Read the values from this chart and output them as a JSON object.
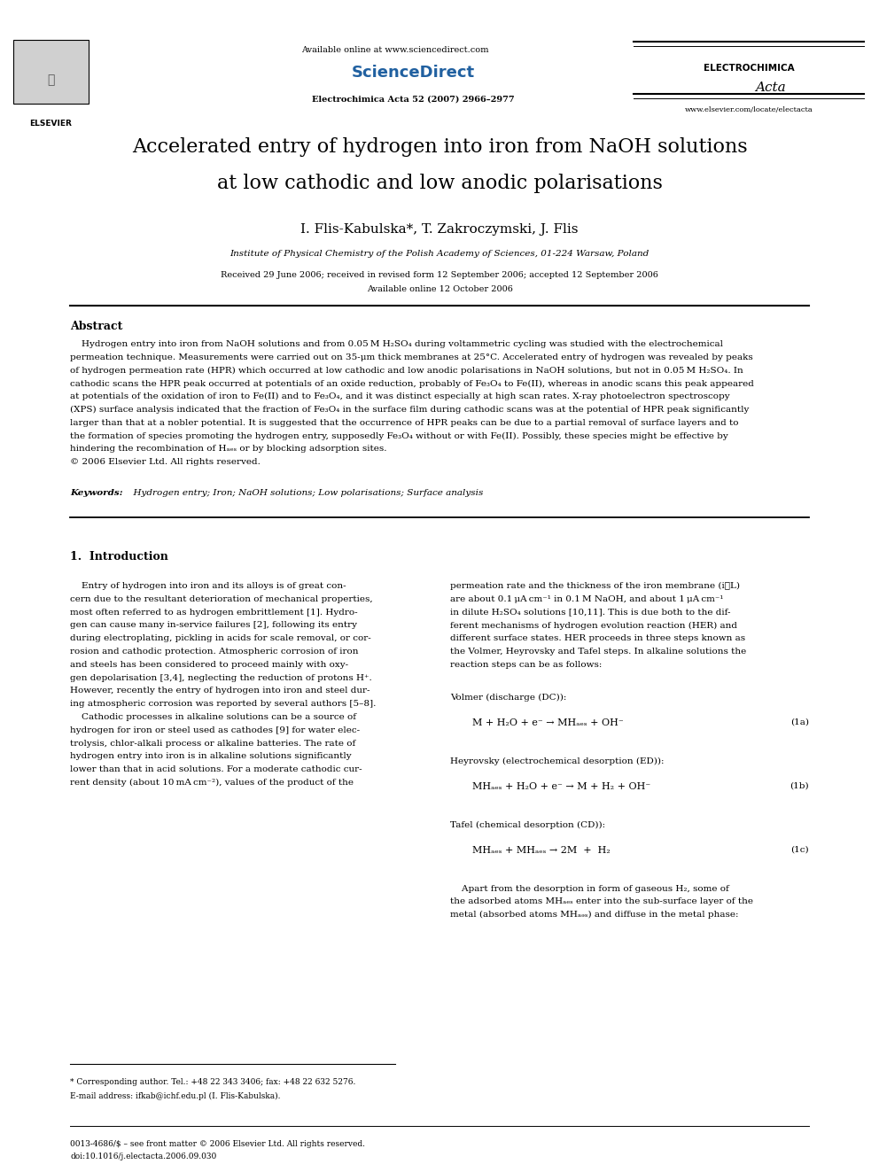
{
  "page_width": 9.92,
  "page_height": 13.23,
  "dpi": 100,
  "background_color": "#ffffff",
  "header": {
    "available_online_text": "Available online at www.sciencedirect.com",
    "journal_name": "Electrochimica Acta 52 (2007) 2966–2977",
    "sciencedirect_text": "ScienceDirect",
    "electrochimica_text": "ELECTROCHIMICA",
    "acta_text": "Acta",
    "elsevier_text": "ELSEVIER",
    "website_text": "www.elsevier.com/locate/electacta"
  },
  "title_line1": "Accelerated entry of hydrogen into iron from NaOH solutions",
  "title_line2": "at low cathodic and low anodic polarisations",
  "authors": "I. Flis-Kabulska*, T. Zakroczymski, J. Flis",
  "affiliation": "Institute of Physical Chemistry of the Polish Academy of Sciences, 01-224 Warsaw, Poland",
  "received": "Received 29 June 2006; received in revised form 12 September 2006; accepted 12 September 2006",
  "available_online": "Available online 12 October 2006",
  "abstract_title": "Abstract",
  "keywords_label": "Keywords:",
  "keywords_text": "  Hydrogen entry; Iron; NaOH solutions; Low polarisations; Surface analysis",
  "section1_title": "1.  Introduction",
  "volmer_label": "Volmer (discharge (DC)):",
  "volmer_eq": "M + H₂O + e⁻ → MHₐₑₛ + OH⁻",
  "volmer_num": "(1a)",
  "heyrovsky_label": "Heyrovsky (electrochemical desorption (ED)):",
  "heyrovsky_eq": "MHₐₑₛ + H₂O + e⁻ → M + H₂ + OH⁻",
  "heyrovsky_num": "(1b)",
  "tafel_label": "Tafel (chemical desorption (CD)):",
  "tafel_eq": "MHₐₑₛ + MHₐₑₛ → 2M  +  H₂",
  "tafel_num": "(1c)",
  "footnote_star": "* Corresponding author. Tel.: +48 22 343 3406; fax: +48 22 632 5276.",
  "footnote_email": "E-mail address: ifkab@ichf.edu.pl (I. Flis-Kabulska).",
  "footnote_issn": "0013-4686/$ – see front matter © 2006 Elsevier Ltd. All rights reserved.",
  "footnote_doi": "doi:10.1016/j.electacta.2006.09.030"
}
